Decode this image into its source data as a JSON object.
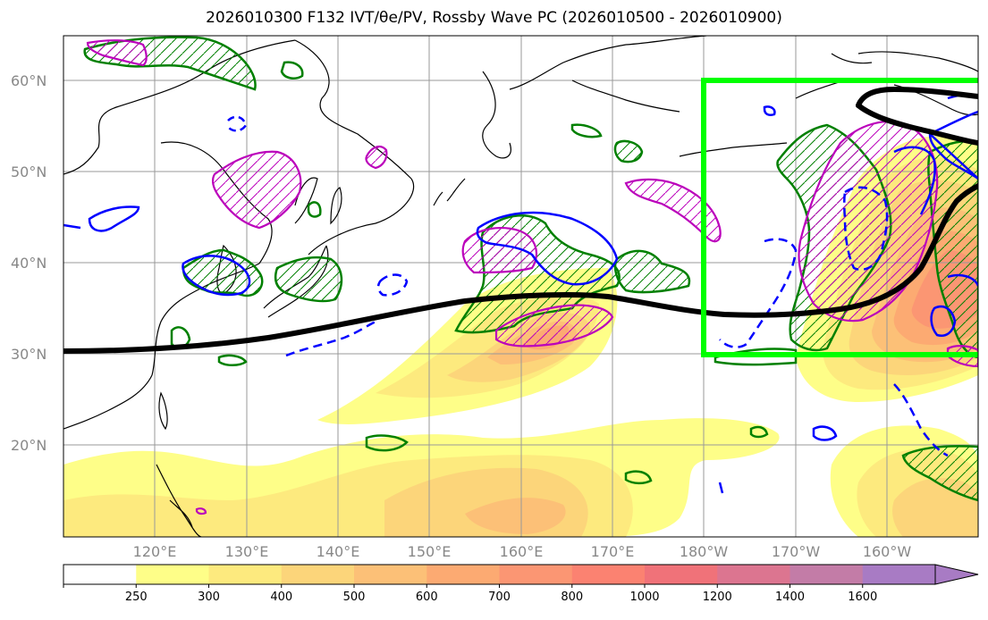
{
  "title": "2026010300 F132 IVT/θe/PV, Rossby Wave PC (2026010500 - 2026010900)",
  "lat_labels": [
    "60°N",
    "50°N",
    "40°N",
    "30°N",
    "20°N"
  ],
  "lon_labels": [
    "120°E",
    "130°E",
    "140°E",
    "150°E",
    "160°E",
    "170°E",
    "180°W",
    "170°W",
    "160°W"
  ],
  "colorbar": {
    "levels": [
      "250",
      "300",
      "400",
      "500",
      "600",
      "700",
      "800",
      "1000",
      "1200",
      "1400",
      "1600"
    ],
    "colors": [
      "#ffffff",
      "#fefe88",
      "#fdea7e",
      "#fcd57a",
      "#fcc077",
      "#fcaa72",
      "#fb9673",
      "#fb8271",
      "#f07279",
      "#dc7590",
      "#c37ca7",
      "#a87bc4"
    ]
  },
  "colors": {
    "box": "#00ff00",
    "jet": "#000000",
    "pv": "#bb00bb",
    "theta_e": "#008000",
    "negative": "#0000ff"
  }
}
